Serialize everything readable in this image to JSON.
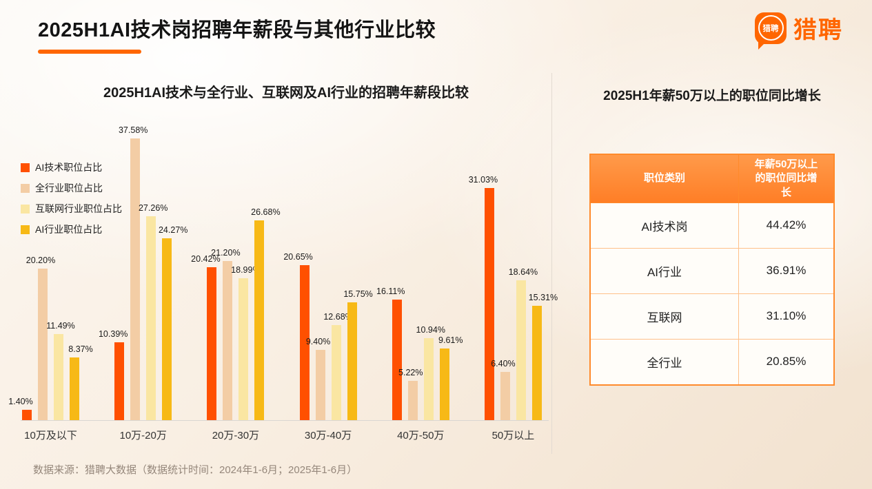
{
  "page": {
    "title": "2025H1AI技术岗招聘年薪段与其他行业比较",
    "footer": "数据来源：猎聘大数据（数据统计时间：2024年1-6月；2025年1-6月）"
  },
  "brand": {
    "name": "猎聘",
    "icon_text": "猎聘",
    "color": "#FF6600"
  },
  "chart_data": {
    "type": "bar",
    "title": "2025H1AI技术与全行业、互联网及AI行业的招聘年薪段比较",
    "categories": [
      "10万及以下",
      "10万-20万",
      "20万-30万",
      "30万-40万",
      "40万-50万",
      "50万以上"
    ],
    "series": [
      {
        "name": "AI技术职位占比",
        "color": "#FF5000",
        "values": [
          1.4,
          10.39,
          20.42,
          20.65,
          16.11,
          31.03
        ]
      },
      {
        "name": "全行业职位占比",
        "color": "#F3CDA5",
        "values": [
          20.2,
          37.58,
          21.2,
          9.4,
          5.22,
          6.4
        ]
      },
      {
        "name": "互联网行业职位占比",
        "color": "#FAE6A2",
        "values": [
          11.49,
          27.26,
          18.99,
          12.68,
          10.94,
          18.64
        ]
      },
      {
        "name": "AI行业职位占比",
        "color": "#F7B916",
        "values": [
          8.37,
          24.27,
          26.68,
          15.75,
          9.61,
          15.31
        ]
      }
    ],
    "value_suffix": "%",
    "ylim": [
      0,
      40
    ],
    "grid": false,
    "legend_position": "left"
  },
  "table": {
    "title": "2025H1年薪50万以上的职位同比增长",
    "header": [
      "职位类别",
      "年薪50万以上的职位同比增长"
    ],
    "rows": [
      {
        "label": "AI技术岗",
        "value": "44.42%"
      },
      {
        "label": "AI行业",
        "value": "36.91%"
      },
      {
        "label": "互联网",
        "value": "31.10%"
      },
      {
        "label": "全行业",
        "value": "20.85%"
      }
    ]
  }
}
